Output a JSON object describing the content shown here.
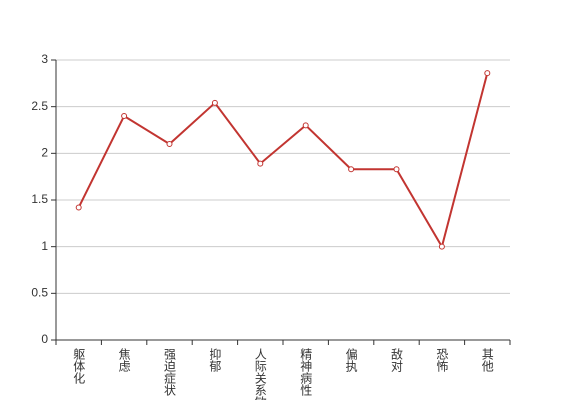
{
  "chart_data": {
    "type": "line",
    "categories": [
      "躯体化",
      "焦虑",
      "强迫症状",
      "抑郁",
      "人际关系敏感",
      "精神病性",
      "偏执",
      "敌对",
      "恐怖",
      "其他"
    ],
    "values": [
      1.42,
      2.4,
      2.1,
      2.54,
      1.89,
      2.3,
      1.83,
      1.83,
      1.0,
      2.86
    ],
    "color": "#c23531",
    "ylim": [
      0,
      3
    ],
    "yticks": [
      0,
      0.5,
      1,
      1.5,
      2,
      2.5,
      3
    ],
    "grid": true
  }
}
